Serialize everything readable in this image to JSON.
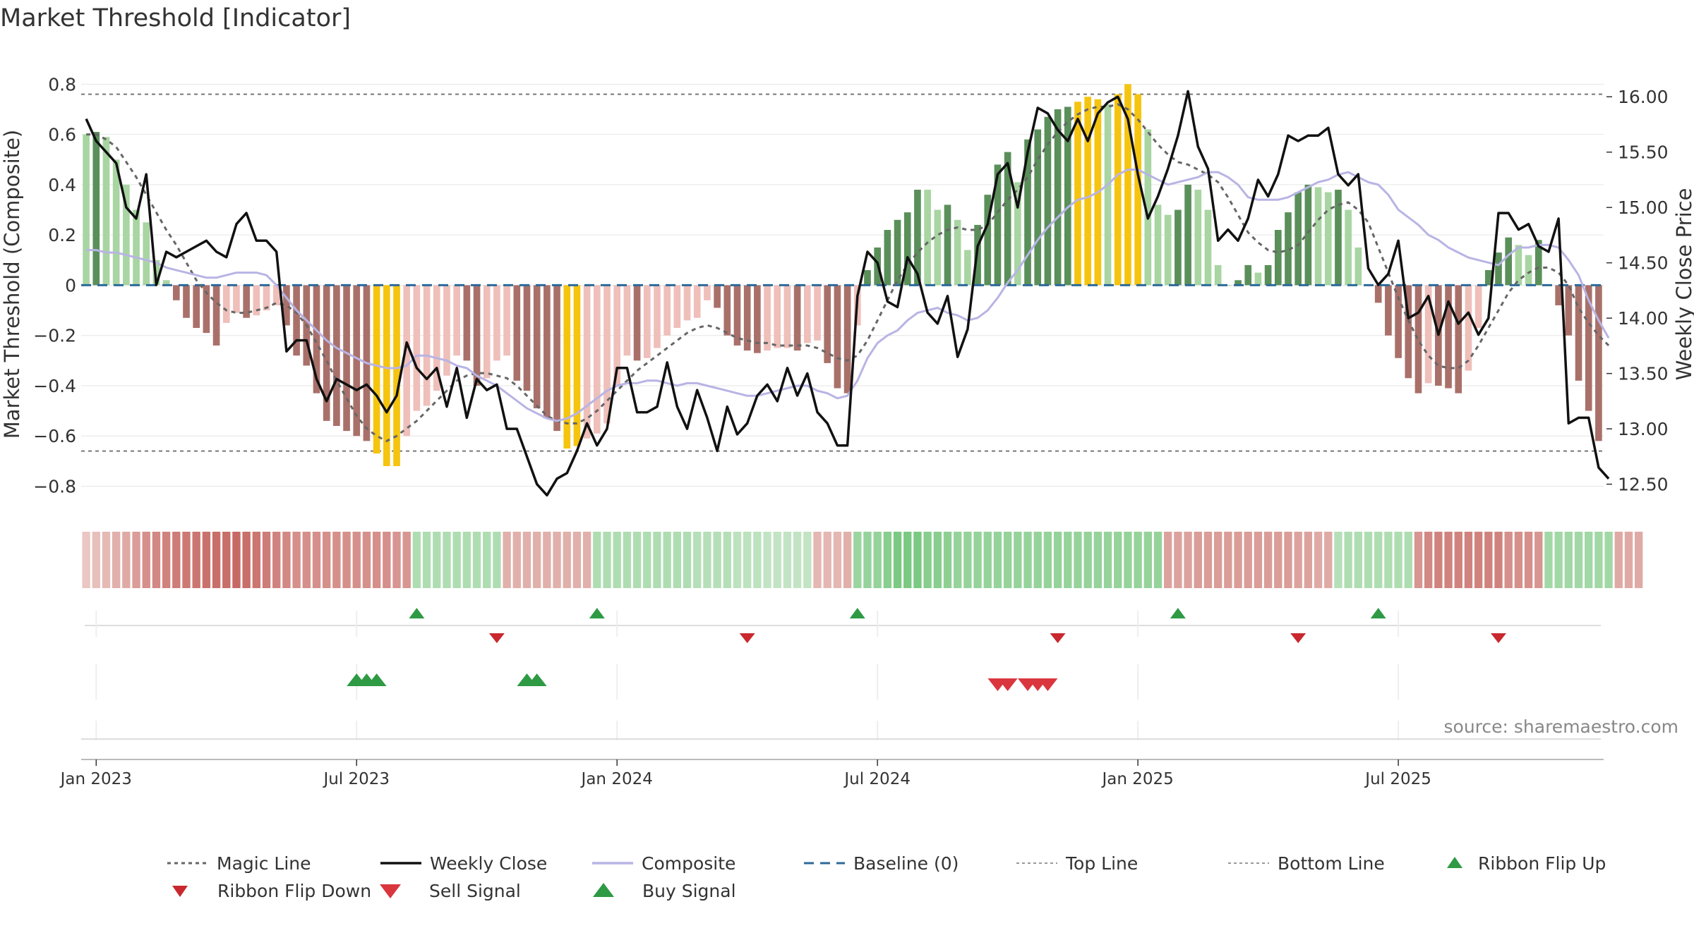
{
  "chart_data": {
    "type": "bar",
    "title": "Market Threshold [Indicator]",
    "ylabel_left": "Market Threshold (Composite)",
    "ylabel_right": "Weekly Close Price",
    "source": "source: sharemaestro.com",
    "yticks_left": [
      "0.8",
      "0.6",
      "0.4",
      "0.2",
      "0",
      "−0.2",
      "−0.4",
      "−0.6",
      "−0.8"
    ],
    "yticks_left_values": [
      0.8,
      0.6,
      0.4,
      0.2,
      0,
      -0.2,
      -0.4,
      -0.6,
      -0.8
    ],
    "yticks_right": [
      "16.00",
      "15.50",
      "15.00",
      "14.50",
      "14.00",
      "13.50",
      "13.00",
      "12.50"
    ],
    "yticks_right_values": [
      16.0,
      15.5,
      15.0,
      14.5,
      14.0,
      13.5,
      13.0,
      12.5
    ],
    "ylim_left": [
      -0.88,
      0.86
    ],
    "ylim_right": [
      12.3,
      16.25
    ],
    "top_line": 0.76,
    "bottom_line": -0.66,
    "xticks": [
      {
        "label": "Jan 2023",
        "week": 1
      },
      {
        "label": "Jul 2023",
        "week": 27
      },
      {
        "label": "Jan 2024",
        "week": 53
      },
      {
        "label": "Jul 2024",
        "week": 79
      },
      {
        "label": "Jan 2025",
        "week": 105
      },
      {
        "label": "Jul 2025",
        "week": 131
      }
    ],
    "composite_bars": [
      0.6,
      0.61,
      0.59,
      0.5,
      0.4,
      0.3,
      0.25,
      0.1,
      0.02,
      -0.06,
      -0.13,
      -0.17,
      -0.19,
      -0.24,
      -0.15,
      -0.11,
      -0.13,
      -0.12,
      -0.1,
      -0.08,
      -0.16,
      -0.28,
      -0.32,
      -0.43,
      -0.54,
      -0.56,
      -0.58,
      -0.6,
      -0.62,
      -0.67,
      -0.72,
      -0.72,
      -0.6,
      -0.5,
      -0.48,
      -0.42,
      -0.36,
      -0.28,
      -0.3,
      -0.4,
      -0.37,
      -0.3,
      -0.28,
      -0.38,
      -0.42,
      -0.49,
      -0.53,
      -0.58,
      -0.65,
      -0.64,
      -0.61,
      -0.59,
      -0.55,
      -0.4,
      -0.28,
      -0.3,
      -0.29,
      -0.25,
      -0.2,
      -0.17,
      -0.14,
      -0.13,
      -0.06,
      -0.09,
      -0.2,
      -0.24,
      -0.26,
      -0.27,
      -0.26,
      -0.25,
      -0.25,
      -0.26,
      -0.23,
      -0.22,
      -0.31,
      -0.41,
      -0.43,
      -0.16,
      0.06,
      0.15,
      0.22,
      0.26,
      0.29,
      0.38,
      0.38,
      0.3,
      0.32,
      0.26,
      0.14,
      0.24,
      0.36,
      0.48,
      0.53,
      0.41,
      0.58,
      0.62,
      0.67,
      0.7,
      0.71,
      0.73,
      0.75,
      0.74,
      0.72,
      0.76,
      0.8,
      0.76,
      0.62,
      0.32,
      0.28,
      0.3,
      0.4,
      0.38,
      0.3,
      0.08,
      0,
      0.02,
      0.08,
      0.05,
      0.08,
      0.22,
      0.29,
      0.37,
      0.4,
      0.39,
      0.37,
      0.38,
      0.3,
      0.15,
      0,
      -0.07,
      -0.2,
      -0.29,
      -0.37,
      -0.43,
      -0.39,
      -0.4,
      -0.41,
      -0.43,
      -0.34,
      -0.17,
      0.06,
      0.13,
      0.19,
      0.16,
      0.12,
      0.18,
      0,
      -0.08,
      -0.2,
      -0.38,
      -0.5,
      -0.62
    ],
    "weekly_close": [
      15.8,
      15.6,
      15.5,
      15.4,
      15.0,
      14.9,
      15.3,
      14.3,
      14.6,
      14.55,
      14.6,
      14.65,
      14.7,
      14.6,
      14.55,
      14.85,
      14.95,
      14.7,
      14.7,
      14.6,
      13.7,
      13.8,
      13.8,
      13.45,
      13.25,
      13.45,
      13.4,
      13.35,
      13.4,
      13.3,
      13.15,
      13.3,
      13.78,
      13.55,
      13.45,
      13.55,
      13.2,
      13.55,
      13.1,
      13.45,
      13.35,
      13.4,
      13.0,
      13.0,
      12.75,
      12.5,
      12.4,
      12.55,
      12.6,
      12.8,
      13.05,
      12.85,
      13.0,
      13.55,
      13.55,
      13.15,
      13.15,
      13.2,
      13.6,
      13.2,
      13.0,
      13.35,
      13.1,
      12.8,
      13.2,
      12.95,
      13.05,
      13.3,
      13.4,
      13.25,
      13.55,
      13.3,
      13.5,
      13.15,
      13.05,
      12.85,
      12.85,
      14.2,
      14.6,
      14.5,
      14.15,
      14.1,
      14.55,
      14.4,
      14.05,
      13.95,
      14.2,
      13.65,
      13.9,
      14.65,
      14.85,
      15.3,
      15.4,
      15.0,
      15.5,
      15.9,
      15.85,
      15.7,
      15.6,
      15.8,
      15.6,
      15.85,
      15.95,
      16.0,
      15.8,
      15.3,
      14.9,
      15.1,
      15.35,
      15.65,
      16.05,
      15.55,
      15.35,
      14.7,
      14.8,
      14.7,
      14.9,
      15.25,
      15.1,
      15.3,
      15.65,
      15.6,
      15.65,
      15.65,
      15.72,
      15.3,
      15.2,
      15.3,
      14.45,
      14.3,
      14.4,
      14.7,
      14.0,
      14.05,
      14.2,
      13.85,
      14.15,
      13.95,
      14.05,
      13.85,
      14.0,
      14.95,
      14.95,
      14.8,
      14.85,
      14.65,
      14.6,
      14.9,
      13.05,
      13.1,
      13.1,
      12.65,
      12.55
    ],
    "composite_line": [
      0.14,
      0.14,
      0.13,
      0.13,
      0.12,
      0.11,
      0.1,
      0.09,
      0.07,
      0.06,
      0.05,
      0.04,
      0.03,
      0.03,
      0.04,
      0.05,
      0.05,
      0.05,
      0.04,
      0.0,
      -0.05,
      -0.1,
      -0.14,
      -0.18,
      -0.22,
      -0.25,
      -0.27,
      -0.29,
      -0.31,
      -0.32,
      -0.33,
      -0.33,
      -0.32,
      -0.28,
      -0.28,
      -0.29,
      -0.3,
      -0.32,
      -0.33,
      -0.36,
      -0.38,
      -0.4,
      -0.43,
      -0.46,
      -0.49,
      -0.51,
      -0.53,
      -0.54,
      -0.53,
      -0.51,
      -0.48,
      -0.45,
      -0.42,
      -0.4,
      -0.39,
      -0.39,
      -0.38,
      -0.38,
      -0.39,
      -0.4,
      -0.39,
      -0.39,
      -0.4,
      -0.41,
      -0.42,
      -0.43,
      -0.44,
      -0.44,
      -0.43,
      -0.42,
      -0.41,
      -0.4,
      -0.4,
      -0.42,
      -0.43,
      -0.45,
      -0.44,
      -0.38,
      -0.29,
      -0.23,
      -0.2,
      -0.18,
      -0.14,
      -0.11,
      -0.1,
      -0.09,
      -0.11,
      -0.12,
      -0.14,
      -0.13,
      -0.1,
      -0.05,
      0.01,
      0.06,
      0.12,
      0.18,
      0.23,
      0.27,
      0.31,
      0.34,
      0.35,
      0.37,
      0.4,
      0.44,
      0.46,
      0.46,
      0.44,
      0.42,
      0.4,
      0.41,
      0.42,
      0.43,
      0.45,
      0.45,
      0.43,
      0.4,
      0.35,
      0.34,
      0.34,
      0.34,
      0.35,
      0.37,
      0.39,
      0.41,
      0.42,
      0.44,
      0.45,
      0.43,
      0.41,
      0.4,
      0.36,
      0.3,
      0.27,
      0.24,
      0.2,
      0.18,
      0.15,
      0.13,
      0.11,
      0.1,
      0.09,
      0.08,
      0.12,
      0.15,
      0.15,
      0.16,
      0.16,
      0.15,
      0.1,
      0.04,
      -0.06,
      -0.14,
      -0.21
    ],
    "magic_line": [
      0.6,
      0.6,
      0.58,
      0.55,
      0.49,
      0.43,
      0.36,
      0.29,
      0.22,
      0.16,
      0.09,
      0.02,
      -0.03,
      -0.07,
      -0.1,
      -0.11,
      -0.11,
      -0.1,
      -0.09,
      -0.07,
      -0.08,
      -0.11,
      -0.16,
      -0.23,
      -0.3,
      -0.38,
      -0.45,
      -0.52,
      -0.57,
      -0.6,
      -0.62,
      -0.6,
      -0.57,
      -0.54,
      -0.5,
      -0.46,
      -0.42,
      -0.38,
      -0.36,
      -0.35,
      -0.35,
      -0.36,
      -0.37,
      -0.4,
      -0.44,
      -0.48,
      -0.52,
      -0.54,
      -0.55,
      -0.55,
      -0.53,
      -0.5,
      -0.46,
      -0.42,
      -0.38,
      -0.34,
      -0.31,
      -0.28,
      -0.25,
      -0.22,
      -0.19,
      -0.17,
      -0.16,
      -0.17,
      -0.19,
      -0.21,
      -0.22,
      -0.23,
      -0.23,
      -0.24,
      -0.24,
      -0.24,
      -0.24,
      -0.25,
      -0.27,
      -0.29,
      -0.3,
      -0.28,
      -0.22,
      -0.14,
      -0.06,
      0.02,
      0.08,
      0.13,
      0.17,
      0.2,
      0.22,
      0.23,
      0.22,
      0.22,
      0.24,
      0.29,
      0.34,
      0.38,
      0.43,
      0.5,
      0.56,
      0.61,
      0.65,
      0.68,
      0.7,
      0.71,
      0.71,
      0.72,
      0.7,
      0.66,
      0.61,
      0.56,
      0.52,
      0.49,
      0.48,
      0.46,
      0.44,
      0.41,
      0.35,
      0.28,
      0.21,
      0.17,
      0.14,
      0.13,
      0.14,
      0.16,
      0.21,
      0.26,
      0.3,
      0.32,
      0.33,
      0.3,
      0.25,
      0.15,
      0.05,
      -0.05,
      -0.14,
      -0.22,
      -0.28,
      -0.32,
      -0.33,
      -0.33,
      -0.3,
      -0.24,
      -0.17,
      -0.1,
      -0.03,
      0.02,
      0.05,
      0.07,
      0.07,
      0.05,
      0.0,
      -0.09,
      -0.15,
      -0.2,
      -0.24
    ],
    "ribbon": [
      -0.12,
      -0.18,
      -0.22,
      -0.3,
      -0.35,
      -0.45,
      -0.55,
      -0.6,
      -0.65,
      -0.7,
      -0.72,
      -0.75,
      -0.78,
      -0.8,
      -0.8,
      -0.85,
      -0.8,
      -0.75,
      -0.7,
      -0.65,
      -0.6,
      -0.55,
      -0.55,
      -0.55,
      -0.55,
      -0.55,
      -0.55,
      -0.55,
      -0.55,
      -0.55,
      -0.55,
      -0.5,
      -0.5,
      0.35,
      0.35,
      0.35,
      0.35,
      0.35,
      0.35,
      0.35,
      0.35,
      0.35,
      -0.3,
      -0.3,
      -0.3,
      -0.3,
      -0.3,
      -0.3,
      -0.3,
      -0.3,
      -0.3,
      0.35,
      0.35,
      0.35,
      0.35,
      0.35,
      0.35,
      0.35,
      0.35,
      0.35,
      0.35,
      0.3,
      0.3,
      0.3,
      0.3,
      0.25,
      0.25,
      0.25,
      0.2,
      0.2,
      0.2,
      0.2,
      0.2,
      -0.25,
      -0.25,
      -0.25,
      -0.3,
      0.5,
      0.55,
      0.55,
      0.65,
      0.75,
      0.75,
      0.75,
      0.65,
      0.65,
      0.6,
      0.55,
      0.55,
      0.55,
      0.55,
      0.55,
      0.55,
      0.55,
      0.55,
      0.55,
      0.55,
      0.55,
      0.55,
      0.55,
      0.55,
      0.55,
      0.55,
      0.55,
      0.55,
      0.55,
      0.55,
      0.55,
      -0.4,
      -0.4,
      -0.4,
      -0.45,
      -0.45,
      -0.45,
      -0.45,
      -0.45,
      -0.45,
      -0.45,
      -0.45,
      -0.45,
      -0.45,
      -0.4,
      -0.4,
      -0.35,
      -0.35,
      0.3,
      0.35,
      0.35,
      0.35,
      0.35,
      0.35,
      0.35,
      0.35,
      -0.5,
      -0.6,
      -0.65,
      -0.65,
      -0.65,
      -0.65,
      -0.65,
      -0.65,
      -0.65,
      -0.55,
      -0.55,
      -0.55,
      -0.5,
      0.45,
      0.45,
      0.45,
      0.45,
      0.45,
      0.45,
      0.45,
      -0.35,
      -0.35,
      -0.35
    ],
    "buy_signals": [
      27,
      28,
      29,
      44,
      45
    ],
    "sell_signals": [
      91,
      92,
      94,
      95,
      96
    ],
    "ribbon_flip_up": [
      33,
      51,
      77,
      109,
      129
    ],
    "ribbon_flip_down": [
      41,
      66,
      97,
      121,
      141
    ],
    "colors": {
      "pos_light": "#a8d5a2",
      "pos_dark": "#5a8f5a",
      "neg_light": "#efbfba",
      "neg_dark": "#a9706a",
      "extreme": "#f5c40f",
      "weekly_close": "#111111",
      "composite": "#b8b4e4",
      "magic": "#666666",
      "baseline": "#2c6a9a",
      "buy": "#2e9a44",
      "sell": "#d9363e"
    },
    "legend": [
      {
        "label": "Magic Line",
        "kind": "dotted-grey"
      },
      {
        "label": "Weekly Close",
        "kind": "solid-black"
      },
      {
        "label": "Composite",
        "kind": "solid-lavender"
      },
      {
        "label": "Baseline (0)",
        "kind": "dashed-blue"
      },
      {
        "label": "Top Line",
        "kind": "dotted-light"
      },
      {
        "label": "Bottom Line",
        "kind": "dotted-light"
      },
      {
        "label": "Ribbon Flip Up",
        "kind": "triangle-up-green"
      },
      {
        "label": "Ribbon Flip Down",
        "kind": "triangle-down-red"
      },
      {
        "label": "Sell Signal",
        "kind": "triangle-down-red-big"
      },
      {
        "label": "Buy Signal",
        "kind": "triangle-up-green-big"
      }
    ]
  }
}
